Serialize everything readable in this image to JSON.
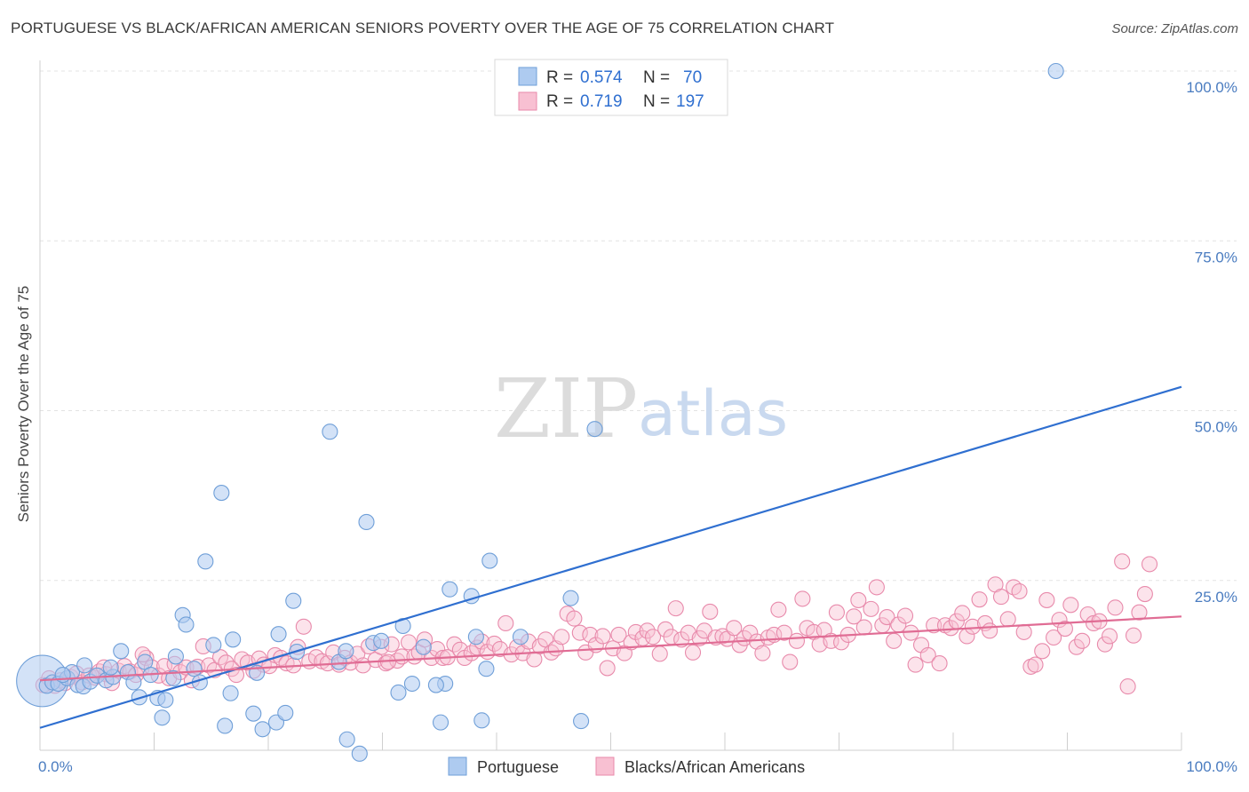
{
  "title": "PORTUGUESE VS BLACK/AFRICAN AMERICAN SENIORS POVERTY OVER THE AGE OF 75 CORRELATION CHART",
  "source": "Source: ZipAtlas.com",
  "watermark": {
    "zip": "ZIP",
    "atlas": "atlas"
  },
  "legend": {
    "rows": [
      {
        "r_label": "R = ",
        "r_value": "0.574",
        "n_label": "N = ",
        "n_value": "70",
        "color": "#aecbf0",
        "stroke": "#6f9fd8"
      },
      {
        "r_label": "R = ",
        "r_value": "0.719",
        "n_label": "N = ",
        "n_value": "197",
        "color": "#f8c0d2",
        "stroke": "#e88aab"
      }
    ]
  },
  "bottom_legend": [
    {
      "label": "Portuguese",
      "color": "#aecbf0",
      "stroke": "#6f9fd8"
    },
    {
      "label": "Blacks/African Americans",
      "color": "#f8c0d2",
      "stroke": "#e88aab"
    }
  ],
  "chart_data": {
    "type": "scatter",
    "ylabel": "Seniors Poverty Over the Age of 75",
    "xlim": [
      0,
      100
    ],
    "ylim": [
      0,
      100
    ],
    "x_tick_labels": [
      "0.0%",
      "100.0%"
    ],
    "y_tick_labels": [
      {
        "value": 100,
        "label": "100.0%"
      },
      {
        "value": 75,
        "label": "75.0%"
      },
      {
        "value": 50,
        "label": "50.0%"
      },
      {
        "value": 25,
        "label": "25.0%"
      }
    ],
    "grid": "horizontal dashed",
    "series": [
      {
        "name": "Portuguese",
        "color": "#6f9fd8",
        "fill": "#aecbf0",
        "trend": {
          "x0": 0,
          "y0": 3.3,
          "x1": 100,
          "y1": 53.5,
          "color": "#2f6fd0"
        },
        "points": [
          [
            0.2,
            10.2,
            3.4
          ],
          [
            0.6,
            9.5,
            1.0
          ],
          [
            1.1,
            10.0,
            1.0
          ],
          [
            1.6,
            9.8,
            1.0
          ],
          [
            2.4,
            10.6,
            1.0
          ],
          [
            2.8,
            11.5,
            1.0
          ],
          [
            3.3,
            9.6,
            1.0
          ],
          [
            3.8,
            9.4,
            1.0
          ],
          [
            4.4,
            10.1,
            1.0
          ],
          [
            5.0,
            11.0,
            1.0
          ],
          [
            5.8,
            10.3,
            1.0
          ],
          [
            6.4,
            10.8,
            1.0
          ],
          [
            7.1,
            14.6,
            1.0
          ],
          [
            7.7,
            11.5,
            1.0
          ],
          [
            8.2,
            10.0,
            1.0
          ],
          [
            8.7,
            7.8,
            1.0
          ],
          [
            9.2,
            13.0,
            1.0
          ],
          [
            9.7,
            11.1,
            1.0
          ],
          [
            10.3,
            7.7,
            1.0
          ],
          [
            10.7,
            4.8,
            1.0
          ],
          [
            11.0,
            7.4,
            1.0
          ],
          [
            11.9,
            13.8,
            1.0
          ],
          [
            12.5,
            19.9,
            1.0
          ],
          [
            12.8,
            18.5,
            1.0
          ],
          [
            13.5,
            12.0,
            1.0
          ],
          [
            14.0,
            10.0,
            1.0
          ],
          [
            14.5,
            27.8,
            1.0
          ],
          [
            15.2,
            15.5,
            1.0
          ],
          [
            15.9,
            37.9,
            1.0
          ],
          [
            16.2,
            3.6,
            1.0
          ],
          [
            16.7,
            8.4,
            1.0
          ],
          [
            18.7,
            5.4,
            1.0
          ],
          [
            19.5,
            3.1,
            1.0
          ],
          [
            19.0,
            11.4,
            1.0
          ],
          [
            20.7,
            4.1,
            1.0
          ],
          [
            22.2,
            22.0,
            1.0
          ],
          [
            21.5,
            5.5,
            1.0
          ],
          [
            25.4,
            46.9,
            1.0
          ],
          [
            26.2,
            13.0,
            1.0
          ],
          [
            26.9,
            1.6,
            1.0
          ],
          [
            28.0,
            -0.5,
            1.0
          ],
          [
            28.6,
            33.6,
            1.0
          ],
          [
            29.2,
            15.8,
            1.0
          ],
          [
            29.9,
            16.1,
            1.0
          ],
          [
            31.4,
            8.5,
            1.0
          ],
          [
            31.8,
            18.3,
            1.0
          ],
          [
            32.6,
            9.8,
            1.0
          ],
          [
            33.6,
            15.2,
            1.0
          ],
          [
            35.1,
            4.1,
            1.0
          ],
          [
            35.5,
            9.8,
            1.0
          ],
          [
            35.9,
            23.7,
            1.0
          ],
          [
            37.8,
            22.7,
            1.0
          ],
          [
            38.2,
            16.7,
            1.0
          ],
          [
            38.7,
            4.4,
            1.0
          ],
          [
            39.4,
            27.9,
            1.0
          ],
          [
            42.1,
            16.7,
            1.0
          ],
          [
            46.5,
            22.4,
            1.0
          ],
          [
            47.4,
            4.3,
            1.0
          ],
          [
            48.6,
            47.3,
            1.0
          ],
          [
            89.0,
            100.0,
            1.0
          ],
          [
            16.9,
            16.3,
            1.0
          ],
          [
            20.9,
            17.1,
            1.0
          ],
          [
            22.5,
            14.5,
            1.0
          ],
          [
            26.8,
            14.6,
            1.0
          ],
          [
            34.7,
            9.6,
            1.0
          ],
          [
            39.1,
            12.0,
            1.0
          ],
          [
            6.2,
            12.2,
            1.0
          ],
          [
            11.7,
            10.6,
            1.0
          ],
          [
            3.9,
            12.5,
            1.0
          ],
          [
            2.0,
            11.1,
            1.0
          ]
        ]
      },
      {
        "name": "Blacks/African Americans",
        "color": "#e88aab",
        "fill": "#f8c0d2",
        "trend": {
          "x0": 0,
          "y0": 10.3,
          "x1": 100,
          "y1": 19.7,
          "color": "#e06c94"
        },
        "points": [
          [
            0.3,
            9.6
          ],
          [
            0.8,
            10.6
          ],
          [
            1.3,
            9.5
          ],
          [
            1.8,
            10.3
          ],
          [
            2.2,
            9.9
          ],
          [
            2.7,
            10.8
          ],
          [
            3.2,
            11.3
          ],
          [
            3.7,
            10.0
          ],
          [
            4.3,
            11.0
          ],
          [
            4.8,
            10.7
          ],
          [
            5.2,
            11.6
          ],
          [
            5.8,
            11.2
          ],
          [
            6.3,
            9.9
          ],
          [
            6.9,
            11.7
          ],
          [
            7.4,
            12.4
          ],
          [
            7.9,
            11.6
          ],
          [
            8.4,
            11.1
          ],
          [
            8.9,
            12.0
          ],
          [
            9.3,
            13.6
          ],
          [
            9.8,
            12.2
          ],
          [
            10.4,
            11.0
          ],
          [
            10.9,
            12.4
          ],
          [
            11.3,
            10.6
          ],
          [
            11.8,
            12.7
          ],
          [
            12.3,
            11.5
          ],
          [
            12.8,
            12.2
          ],
          [
            13.3,
            10.3
          ],
          [
            13.8,
            12.3
          ],
          [
            14.3,
            15.3
          ],
          [
            14.8,
            12.5
          ],
          [
            15.3,
            11.8
          ],
          [
            15.8,
            13.7
          ],
          [
            16.3,
            12.9
          ],
          [
            16.8,
            12.0
          ],
          [
            17.2,
            11.1
          ],
          [
            17.7,
            13.4
          ],
          [
            18.2,
            12.9
          ],
          [
            18.7,
            11.7
          ],
          [
            19.2,
            13.5
          ],
          [
            19.6,
            12.6
          ],
          [
            20.1,
            12.4
          ],
          [
            20.6,
            14.0
          ],
          [
            21.1,
            13.6
          ],
          [
            21.6,
            12.8
          ],
          [
            22.2,
            12.5
          ],
          [
            22.6,
            15.2
          ],
          [
            23.1,
            18.2
          ],
          [
            23.6,
            13.1
          ],
          [
            24.2,
            13.7
          ],
          [
            24.7,
            13.1
          ],
          [
            25.2,
            12.8
          ],
          [
            25.7,
            14.4
          ],
          [
            26.2,
            12.6
          ],
          [
            26.7,
            13.6
          ],
          [
            27.2,
            12.9
          ],
          [
            27.8,
            14.2
          ],
          [
            28.3,
            12.5
          ],
          [
            28.8,
            15.3
          ],
          [
            29.4,
            13.3
          ],
          [
            29.9,
            15.2
          ],
          [
            30.3,
            12.8
          ],
          [
            30.8,
            15.6
          ],
          [
            31.3,
            13.2
          ],
          [
            31.7,
            13.8
          ],
          [
            32.3,
            15.9
          ],
          [
            32.8,
            13.8
          ],
          [
            33.2,
            14.4
          ],
          [
            33.7,
            16.3
          ],
          [
            34.3,
            13.6
          ],
          [
            34.8,
            14.9
          ],
          [
            35.3,
            13.6
          ],
          [
            35.7,
            13.7
          ],
          [
            36.3,
            15.6
          ],
          [
            36.8,
            14.8
          ],
          [
            37.2,
            13.6
          ],
          [
            37.8,
            14.3
          ],
          [
            38.3,
            15.1
          ],
          [
            38.7,
            16.0
          ],
          [
            39.2,
            14.5
          ],
          [
            39.8,
            15.7
          ],
          [
            40.3,
            14.9
          ],
          [
            40.8,
            18.7
          ],
          [
            41.3,
            14.1
          ],
          [
            41.8,
            15.2
          ],
          [
            42.3,
            14.3
          ],
          [
            42.8,
            16.0
          ],
          [
            43.3,
            13.4
          ],
          [
            43.8,
            15.3
          ],
          [
            44.3,
            16.3
          ],
          [
            44.8,
            14.4
          ],
          [
            45.2,
            15.0
          ],
          [
            45.7,
            16.7
          ],
          [
            46.2,
            20.1
          ],
          [
            46.8,
            19.4
          ],
          [
            47.3,
            17.3
          ],
          [
            47.8,
            14.4
          ],
          [
            48.2,
            17.0
          ],
          [
            48.7,
            15.5
          ],
          [
            49.3,
            16.8
          ],
          [
            49.7,
            12.1
          ],
          [
            50.2,
            15.0
          ],
          [
            50.7,
            17.0
          ],
          [
            51.2,
            14.3
          ],
          [
            51.8,
            15.9
          ],
          [
            52.2,
            17.4
          ],
          [
            52.8,
            16.5
          ],
          [
            53.2,
            17.6
          ],
          [
            53.7,
            16.7
          ],
          [
            54.3,
            14.2
          ],
          [
            54.8,
            17.8
          ],
          [
            55.3,
            16.7
          ],
          [
            55.7,
            20.9
          ],
          [
            56.2,
            16.3
          ],
          [
            56.8,
            17.3
          ],
          [
            57.2,
            14.4
          ],
          [
            57.8,
            16.5
          ],
          [
            58.2,
            17.6
          ],
          [
            58.7,
            20.4
          ],
          [
            59.2,
            16.6
          ],
          [
            59.8,
            16.8
          ],
          [
            60.2,
            16.4
          ],
          [
            60.8,
            18.0
          ],
          [
            61.3,
            15.5
          ],
          [
            61.7,
            16.5
          ],
          [
            62.2,
            17.3
          ],
          [
            62.8,
            16.0
          ],
          [
            63.3,
            14.3
          ],
          [
            63.8,
            16.6
          ],
          [
            64.3,
            17.0
          ],
          [
            64.7,
            20.7
          ],
          [
            65.2,
            17.3
          ],
          [
            65.7,
            13.0
          ],
          [
            66.3,
            16.1
          ],
          [
            66.8,
            22.3
          ],
          [
            67.2,
            18.0
          ],
          [
            67.8,
            17.4
          ],
          [
            68.3,
            15.6
          ],
          [
            68.7,
            17.7
          ],
          [
            69.3,
            16.1
          ],
          [
            69.8,
            20.3
          ],
          [
            70.2,
            15.9
          ],
          [
            70.8,
            17.0
          ],
          [
            71.3,
            19.7
          ],
          [
            71.7,
            22.1
          ],
          [
            72.2,
            18.1
          ],
          [
            72.8,
            20.8
          ],
          [
            73.3,
            24.0
          ],
          [
            73.8,
            18.4
          ],
          [
            74.2,
            19.6
          ],
          [
            74.8,
            16.1
          ],
          [
            75.2,
            18.5
          ],
          [
            75.8,
            19.8
          ],
          [
            76.3,
            17.3
          ],
          [
            76.7,
            12.6
          ],
          [
            77.2,
            15.5
          ],
          [
            77.8,
            14.0
          ],
          [
            78.3,
            18.4
          ],
          [
            78.8,
            12.8
          ],
          [
            79.3,
            18.4
          ],
          [
            79.8,
            18.0
          ],
          [
            80.3,
            19.0
          ],
          [
            80.8,
            20.2
          ],
          [
            81.2,
            16.8
          ],
          [
            81.7,
            18.2
          ],
          [
            82.3,
            22.2
          ],
          [
            82.8,
            18.7
          ],
          [
            83.2,
            17.6
          ],
          [
            83.7,
            24.4
          ],
          [
            84.2,
            22.6
          ],
          [
            84.8,
            19.3
          ],
          [
            85.3,
            24.0
          ],
          [
            85.8,
            23.4
          ],
          [
            86.2,
            17.4
          ],
          [
            86.8,
            12.3
          ],
          [
            87.2,
            12.6
          ],
          [
            87.8,
            14.6
          ],
          [
            88.2,
            22.1
          ],
          [
            88.8,
            16.6
          ],
          [
            89.3,
            19.2
          ],
          [
            89.8,
            17.9
          ],
          [
            90.3,
            21.4
          ],
          [
            90.8,
            15.2
          ],
          [
            91.3,
            16.1
          ],
          [
            91.8,
            20.0
          ],
          [
            92.3,
            18.7
          ],
          [
            92.8,
            19.0
          ],
          [
            93.3,
            15.6
          ],
          [
            93.7,
            16.8
          ],
          [
            94.2,
            21.0
          ],
          [
            94.8,
            27.8
          ],
          [
            95.3,
            9.4
          ],
          [
            95.8,
            16.9
          ],
          [
            96.3,
            20.3
          ],
          [
            96.8,
            23.0
          ],
          [
            97.2,
            27.4
          ],
          [
            5.6,
            12.2
          ],
          [
            9.0,
            14.1
          ],
          [
            30.5,
            13.0
          ]
        ]
      }
    ]
  }
}
